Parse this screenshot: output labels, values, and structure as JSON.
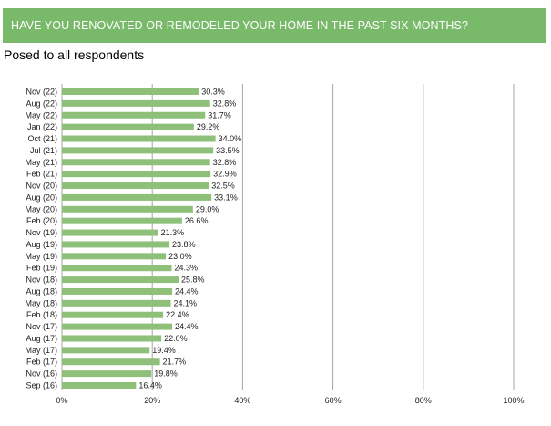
{
  "header": {
    "title": "HAVE YOU RENOVATED OR REMODELED YOUR HOME IN THE PAST SIX MONTHS?",
    "background_color": "#79b96a"
  },
  "subtitle": "Posed to all respondents",
  "chart_data": {
    "type": "bar",
    "orientation": "horizontal",
    "title": "HAVE YOU RENOVATED OR REMODELED YOUR HOME IN THE PAST SIX MONTHS?",
    "subtitle": "Posed to all respondents",
    "xlabel": "",
    "ylabel": "",
    "xlim": [
      0,
      100
    ],
    "x_ticks": [
      "0%",
      "20%",
      "40%",
      "60%",
      "80%",
      "100%"
    ],
    "grid": "vertical",
    "bar_color": "#8fc07a",
    "categories": [
      "Nov (22)",
      "Aug (22)",
      "May (22)",
      "Jan (22)",
      "Oct (21)",
      "Jul (21)",
      "May (21)",
      "Feb (21)",
      "Nov (20)",
      "Aug (20)",
      "May (20)",
      "Feb (20)",
      "Nov (19)",
      "Aug (19)",
      "May (19)",
      "Feb (19)",
      "Nov (18)",
      "Aug (18)",
      "May (18)",
      "Feb (18)",
      "Nov (17)",
      "Aug (17)",
      "May (17)",
      "Feb (17)",
      "Nov (16)",
      "Sep (16)"
    ],
    "values": [
      30.3,
      32.8,
      31.7,
      29.2,
      34.0,
      33.5,
      32.8,
      32.9,
      32.5,
      33.1,
      29.0,
      26.6,
      21.3,
      23.8,
      23.0,
      24.3,
      25.8,
      24.4,
      24.1,
      22.4,
      24.4,
      22.0,
      19.4,
      21.7,
      19.8,
      16.4
    ],
    "data_labels": [
      "30.3%",
      "32.8%",
      "31.7%",
      "29.2%",
      "34.0%",
      "33.5%",
      "32.8%",
      "32.9%",
      "32.5%",
      "33.1%",
      "29.0%",
      "26.6%",
      "21.3%",
      "23.8%",
      "23.0%",
      "24.3%",
      "25.8%",
      "24.4%",
      "24.1%",
      "22.4%",
      "24.4%",
      "22.0%",
      "19.4%",
      "21.7%",
      "19.8%",
      "16.4%"
    ]
  }
}
